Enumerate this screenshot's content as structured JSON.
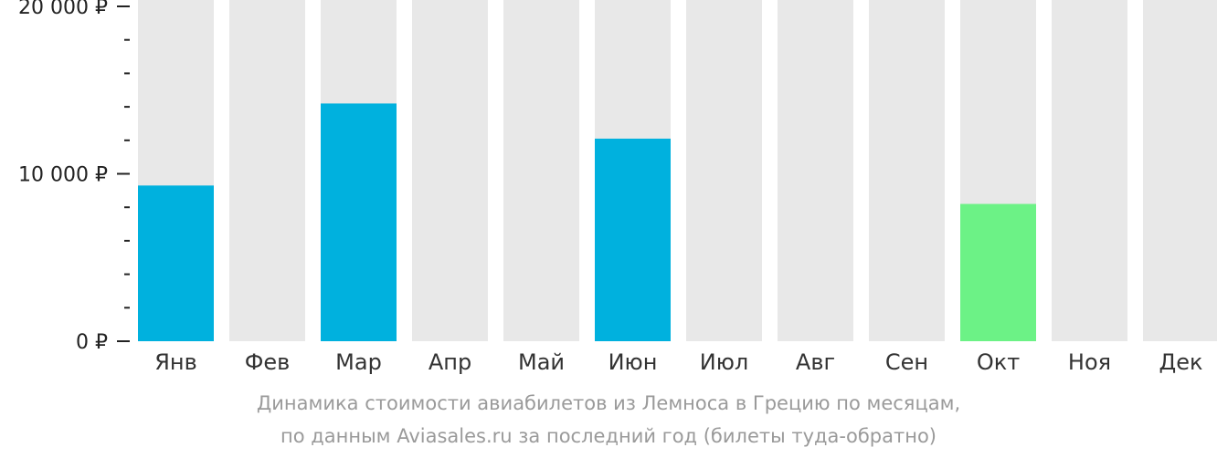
{
  "chart_data": {
    "type": "bar",
    "categories": [
      "Янв",
      "Фев",
      "Мар",
      "Апр",
      "Май",
      "Июн",
      "Июл",
      "Авг",
      "Сен",
      "Окт",
      "Ноя",
      "Дек"
    ],
    "values": [
      9300,
      null,
      14200,
      null,
      null,
      12100,
      null,
      null,
      null,
      8200,
      null,
      null
    ],
    "ylim": [
      0,
      20000
    ],
    "yticks": [
      {
        "value": 0,
        "label": "0 ₽"
      },
      {
        "value": 10000,
        "label": "10 000 ₽"
      },
      {
        "value": 20000,
        "label": "20 000 ₽"
      }
    ],
    "minor_tick_step": 2000,
    "highlight_index": 9,
    "colors": {
      "bar": "#00b1de",
      "highlight": "#6cf286",
      "background_bar": "#e8e8e8",
      "axis": "#222222"
    },
    "grid": false,
    "legend": "none"
  },
  "caption": {
    "line1": "Динамика стоимости авиабилетов из Лемноса в Грецию по месяцам,",
    "line2": "по данным Aviasales.ru за последний год (билеты туда-обратно)"
  }
}
